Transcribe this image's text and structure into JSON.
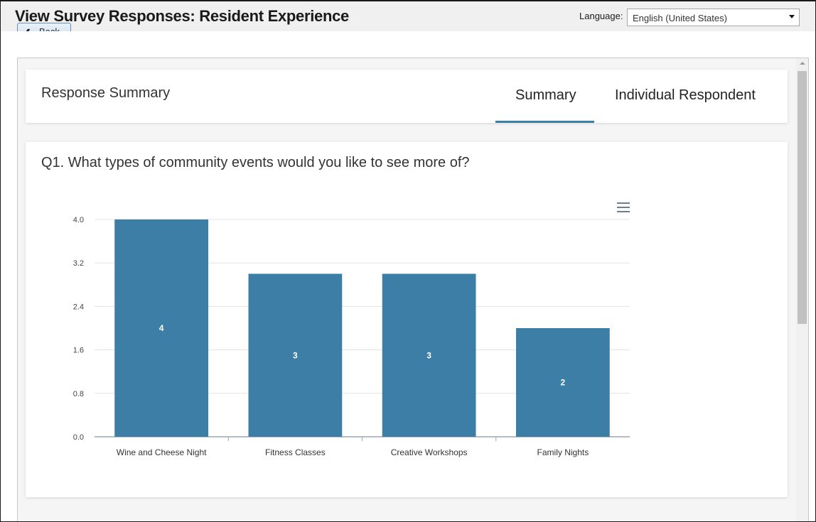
{
  "header": {
    "title": "View Survey Responses:  Resident Experience",
    "language_label": "Language:",
    "language_value": "English (United States)"
  },
  "back_button": {
    "label": "Back"
  },
  "summary": {
    "title": "Response Summary",
    "tabs": [
      {
        "label": "Summary",
        "active": true
      },
      {
        "label": "Individual Respondent",
        "active": false
      }
    ]
  },
  "question": {
    "text": "Q1. What types of community events would you like to see more of?"
  },
  "colors": {
    "bar": "#3d7ea6",
    "accent": "#3d7ea6"
  },
  "icons": {
    "chart_menu": "hamburger-menu-icon"
  },
  "chart_data": {
    "type": "bar",
    "categories": [
      "Wine and Cheese Night",
      "Fitness Classes",
      "Creative Workshops",
      "Family Nights"
    ],
    "values": [
      4,
      3,
      3,
      2
    ],
    "data_labels": [
      "4",
      "3",
      "3",
      "2"
    ],
    "ylim": [
      0,
      4
    ],
    "yticks": [
      "0.0",
      "0.8",
      "1.6",
      "2.4",
      "3.2",
      "4.0"
    ],
    "grid": true,
    "title": "",
    "xlabel": "",
    "ylabel": ""
  }
}
